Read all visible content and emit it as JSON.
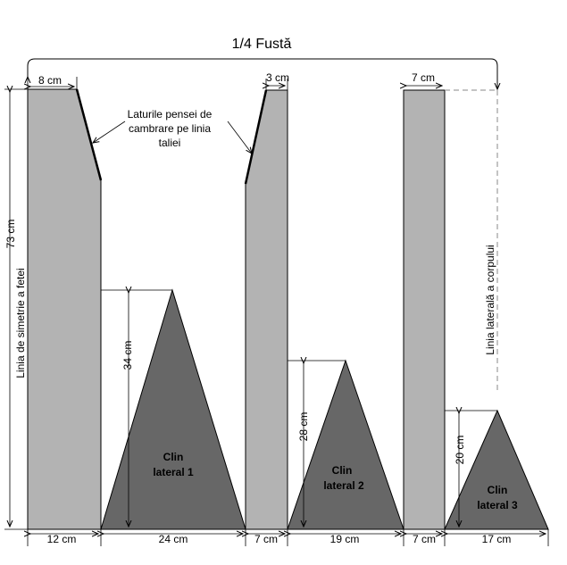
{
  "title": "1/4 Fustă",
  "annotation": {
    "line1": "Laturile pensei de",
    "line2": "cambrare pe linia",
    "line3": "taliei"
  },
  "labels": {
    "symmetry_line": "Linia de simetrie a fetei",
    "side_line": "Linia laterală a corpului",
    "height_total": "73 cm",
    "height_clin1": "34 cm",
    "height_clin2": "28 cm",
    "height_clin3": "20 cm",
    "top_panel1": "8 cm",
    "top_panel2": "3 cm",
    "top_panel3": "7 cm",
    "bottom": [
      "12 cm",
      "24 cm",
      "7 cm",
      "19 cm",
      "7 cm",
      "17 cm"
    ]
  },
  "gores": [
    {
      "line1": "Clin",
      "line2": "lateral 1"
    },
    {
      "line1": "Clin",
      "line2": "lateral 2"
    },
    {
      "line1": "Clin",
      "line2": "lateral 3"
    }
  ],
  "colors": {
    "panel_fill": "#b3b3b3",
    "gore_fill": "#676767",
    "line": "#000000"
  }
}
